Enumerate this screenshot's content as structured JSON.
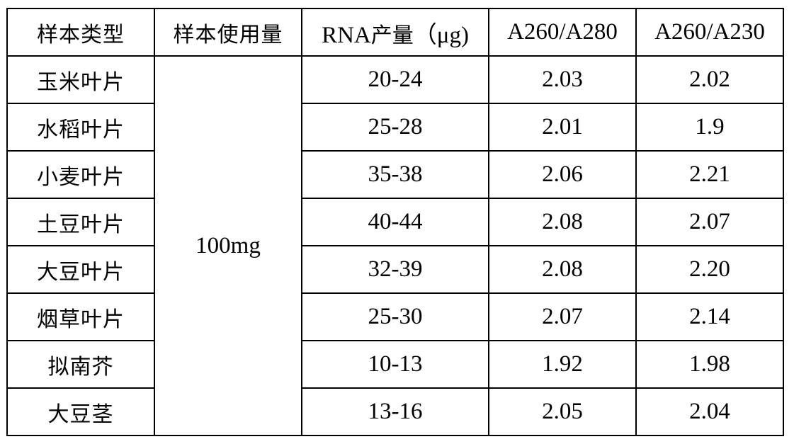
{
  "table": {
    "headers": {
      "sample_type": "样本类型",
      "sample_amount": "样本使用量",
      "rna_yield_prefix": "RNA",
      "rna_yield_cjk": "产量",
      "rna_yield_unit": "（μg)",
      "a260_a280": "A260/A280",
      "a260_a230": "A260/A230"
    },
    "shared_amount": "100mg",
    "rows": [
      {
        "type": "玉米叶片",
        "yield": "20-24",
        "a280": "2.03",
        "a230": "2.02"
      },
      {
        "type": "水稻叶片",
        "yield": "25-28",
        "a280": "2.01",
        "a230": "1.9"
      },
      {
        "type": "小麦叶片",
        "yield": "35-38",
        "a280": "2.06",
        "a230": "2.21"
      },
      {
        "type": "土豆叶片",
        "yield": "40-44",
        "a280": "2.08",
        "a230": "2.07"
      },
      {
        "type": "大豆叶片",
        "yield": "32-39",
        "a280": "2.08",
        "a230": "2.20"
      },
      {
        "type": "烟草叶片",
        "yield": "25-30",
        "a280": "2.07",
        "a230": "2.14"
      },
      {
        "type": "拟南芥",
        "yield": "10-13",
        "a280": "1.92",
        "a230": "1.98"
      },
      {
        "type": "大豆茎",
        "yield": "13-16",
        "a280": "2.05",
        "a230": "2.04"
      }
    ]
  }
}
